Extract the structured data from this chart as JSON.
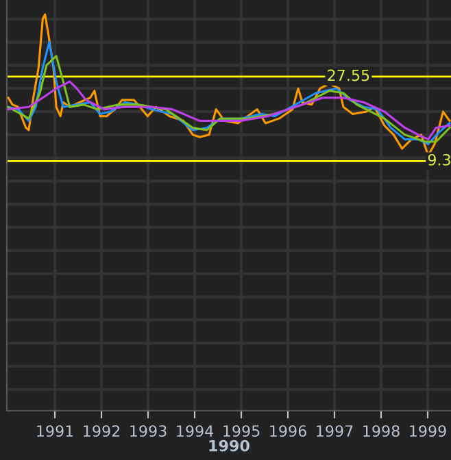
{
  "chart_data": {
    "type": "line",
    "xlabel": "1990",
    "xlim": [
      1989.97,
      1999.5
    ],
    "xticks": [
      1991,
      1992,
      1993,
      1994,
      1995,
      1996,
      1997,
      1998,
      1999
    ],
    "ylim": [
      -44.6,
      44.1
    ],
    "yticks": [
      {
        "value": -40,
        "label": null
      },
      {
        "value": -35,
        "label": null
      },
      {
        "value": -30,
        "label": null
      },
      {
        "value": -25,
        "label": null
      },
      {
        "value": -20,
        "label": null
      },
      {
        "value": -15,
        "label": null
      },
      {
        "value": -10,
        "label": null
      },
      {
        "value": -5,
        "label": null
      },
      {
        "value": 0,
        "label": null
      },
      {
        "value": 5,
        "label": null
      },
      {
        "value": 10,
        "label": null
      },
      {
        "value": 15,
        "label": null
      },
      {
        "value": 20,
        "label": null
      },
      {
        "value": 25,
        "label": null
      },
      {
        "value": 30,
        "label": null
      },
      {
        "value": 35,
        "label": null
      },
      {
        "value": 40,
        "label": null
      }
    ],
    "tick_labels": "x",
    "grid": true,
    "legend": false,
    "series": [
      {
        "color": "#ff9900",
        "x": [
          1990.0,
          1990.09,
          1990.21,
          1990.3,
          1990.38,
          1990.44,
          1990.53,
          1990.65,
          1990.74,
          1990.79,
          1990.88,
          1990.97,
          1991.03,
          1991.12,
          1991.18,
          1991.32,
          1991.53,
          1991.76,
          1991.85,
          1991.97,
          1992.11,
          1992.29,
          1992.44,
          1992.7,
          1992.99,
          1993.17,
          1993.46,
          1993.76,
          1993.96,
          1994.11,
          1994.31,
          1994.46,
          1994.64,
          1994.93,
          1995.34,
          1995.52,
          1995.81,
          1996.1,
          1996.22,
          1996.31,
          1996.51,
          1996.69,
          1996.89,
          1997.1,
          1997.19,
          1997.39,
          1997.69,
          1997.86,
          1998.07,
          1998.27,
          1998.45,
          1998.65,
          1998.86,
          1999.01,
          1999.15,
          1999.33,
          1999.47
        ],
        "values": [
          23,
          21.5,
          21,
          18.5,
          16.5,
          16,
          22.5,
          29.5,
          40,
          41,
          35.5,
          29.5,
          21,
          19,
          22,
          21,
          22,
          23,
          24.5,
          19,
          19,
          20.5,
          22.5,
          22.5,
          19,
          21,
          19,
          18,
          15,
          14.5,
          15,
          20.5,
          18,
          17.5,
          20.5,
          17.5,
          18.5,
          20.5,
          25,
          22,
          21.5,
          25,
          26,
          25,
          21,
          19.5,
          20,
          21,
          17,
          15,
          12,
          14,
          15,
          10.5,
          13,
          20,
          18
        ]
      },
      {
        "color": "#1e90ff",
        "x": [
          1990.0,
          1990.21,
          1990.44,
          1990.59,
          1990.74,
          1990.88,
          1991.03,
          1991.18,
          1991.47,
          1991.76,
          1991.97,
          1992.2,
          1992.5,
          1992.79,
          1993.08,
          1993.52,
          1993.96,
          1994.26,
          1994.55,
          1994.99,
          1995.43,
          1995.72,
          1996.16,
          1996.6,
          1997.04,
          1997.33,
          1997.63,
          1997.92,
          1998.21,
          1998.51,
          1998.8,
          1999.01,
          1999.24,
          1999.47
        ],
        "values": [
          21,
          20.5,
          18,
          21,
          29.5,
          35,
          26.5,
          21,
          21.5,
          22,
          19.5,
          20,
          22,
          21.5,
          20.5,
          19.5,
          16,
          16.5,
          18.5,
          18.5,
          19.5,
          19,
          21.5,
          24,
          25,
          22.5,
          21,
          20.5,
          16.5,
          14,
          14,
          13,
          15.5,
          17.5
        ]
      },
      {
        "color": "#7fc31c",
        "x": [
          1990.0,
          1990.44,
          1990.68,
          1990.82,
          1991.03,
          1991.18,
          1991.32,
          1991.62,
          1991.91,
          1992.35,
          1992.79,
          1993.38,
          1993.96,
          1994.26,
          1994.55,
          1995.13,
          1995.72,
          1996.31,
          1996.89,
          1997.19,
          1997.48,
          1998.07,
          1998.51,
          1998.95,
          1999.18,
          1999.47
        ],
        "values": [
          21,
          18.5,
          24,
          30,
          32,
          26.5,
          21,
          21.5,
          20.5,
          21.5,
          21.5,
          20.5,
          16.5,
          16,
          18.5,
          18.5,
          19.5,
          21.5,
          24.5,
          24,
          21.5,
          18.5,
          15,
          13.5,
          13.5,
          16.5
        ]
      },
      {
        "color": "#c040f0",
        "x": [
          1990.0,
          1990.44,
          1990.74,
          1991.03,
          1991.32,
          1991.47,
          1991.67,
          1992.06,
          1992.5,
          1993.08,
          1993.52,
          1994.11,
          1994.55,
          1994.99,
          1995.57,
          1996.16,
          1996.75,
          1997.19,
          1997.63,
          1998.07,
          1998.51,
          1998.8,
          1999.01,
          1999.18,
          1999.47
        ],
        "values": [
          20.5,
          21,
          23,
          25,
          26.5,
          25,
          22.5,
          20.5,
          21,
          21,
          20.5,
          18,
          18,
          18,
          19,
          21,
          23,
          23,
          22,
          20,
          16.5,
          15,
          14,
          16.5,
          17
        ]
      }
    ],
    "ref_lines": [
      {
        "axis": "y",
        "value": 27.55,
        "label": "27.55",
        "color": "#ffff00"
      },
      {
        "axis": "y",
        "value": 9.3,
        "label": "9.3",
        "color": "#ffff00"
      }
    ]
  }
}
